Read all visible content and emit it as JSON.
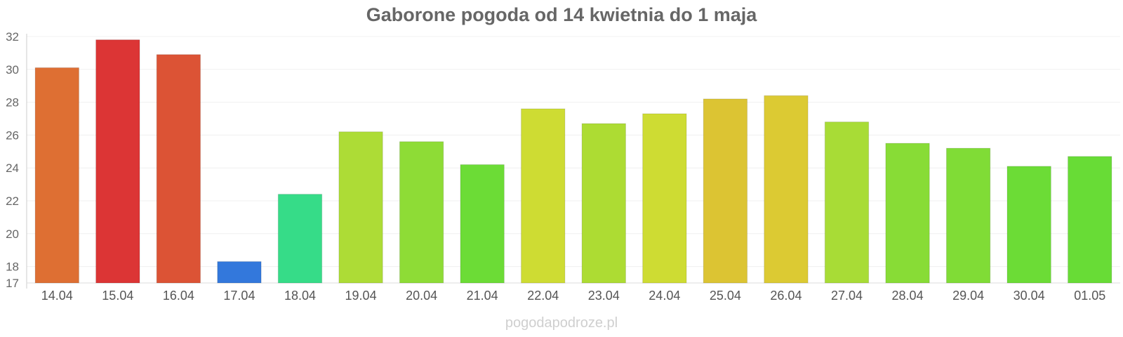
{
  "page": {
    "title": "Gaborone pogoda od 14 kwietnia do 1 maja",
    "watermark": "pogodapodroze.pl"
  },
  "chart_data": {
    "type": "bar",
    "title": "Gaborone pogoda od 14 kwietnia do 1 maja",
    "xlabel": "",
    "ylabel": "",
    "categories": [
      "14.04",
      "15.04",
      "16.04",
      "17.04",
      "18.04",
      "19.04",
      "20.04",
      "21.04",
      "22.04",
      "23.04",
      "24.04",
      "25.04",
      "26.04",
      "27.04",
      "28.04",
      "29.04",
      "30.04",
      "01.05"
    ],
    "values": [
      30.1,
      31.8,
      30.9,
      18.3,
      22.4,
      26.2,
      25.6,
      24.2,
      27.6,
      26.7,
      27.3,
      28.2,
      28.4,
      26.8,
      25.5,
      25.2,
      24.1,
      24.7
    ],
    "colors": [
      "#de6f33",
      "#dc3535",
      "#dc5335",
      "#3378dc",
      "#36dc88",
      "#addc36",
      "#8edc36",
      "#6cdc36",
      "#cedc33",
      "#addc33",
      "#cedc33",
      "#dcc433",
      "#dcca33",
      "#a8dc36",
      "#88dc36",
      "#80dc36",
      "#6cdc36",
      "#68dc36"
    ],
    "yticks": [
      17,
      18,
      20,
      22,
      24,
      26,
      28,
      30,
      32
    ],
    "ylim": [
      17,
      32
    ],
    "grid": true,
    "legend": "none"
  }
}
